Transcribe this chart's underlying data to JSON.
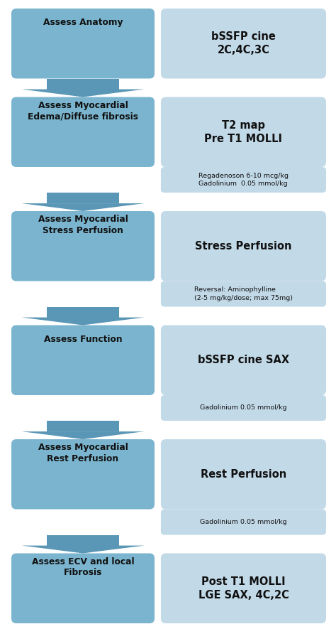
{
  "outer_bg": "#ffffff",
  "main_blue": "#7ab4ce",
  "light_blue_box": "#c2d9e8",
  "arrow_color": "#5a96b5",
  "text_dark": "#111111",
  "fig_w": 4.74,
  "fig_h": 8.85,
  "dpi": 100,
  "rows": [
    {
      "left_title": "Assess Anatomy",
      "right_text": "bSSFP cine\n2C,4C,3C",
      "annotation": null
    },
    {
      "left_title": "Assess Myocardial\nEdema/Diffuse fibrosis",
      "right_text": "T2 map\nPre T1 MOLLI",
      "annotation": "Regadenoson 6-10 mcg/kg\nGadolinium  0.05 mmol/kg"
    },
    {
      "left_title": "Assess Myocardial\nStress Perfusion",
      "right_text": "Stress Perfusion",
      "annotation": "Reversal: Aminophylline\n(2-5 mg/kg/dose; max 75mg)"
    },
    {
      "left_title": "Assess Function",
      "right_text": "bSSFP cine SAX",
      "annotation": "Gadolinium 0.05 mmol/kg"
    },
    {
      "left_title": "Assess Myocardial\nRest Perfusion",
      "right_text": "Rest Perfusion",
      "annotation": "Gadolinium 0.05 mmol/kg"
    },
    {
      "left_title": "Assess ECV and local\nFibrosis",
      "right_text": "Post T1 MOLLI\nLGE SAX, 4C,2C",
      "annotation": null
    }
  ]
}
